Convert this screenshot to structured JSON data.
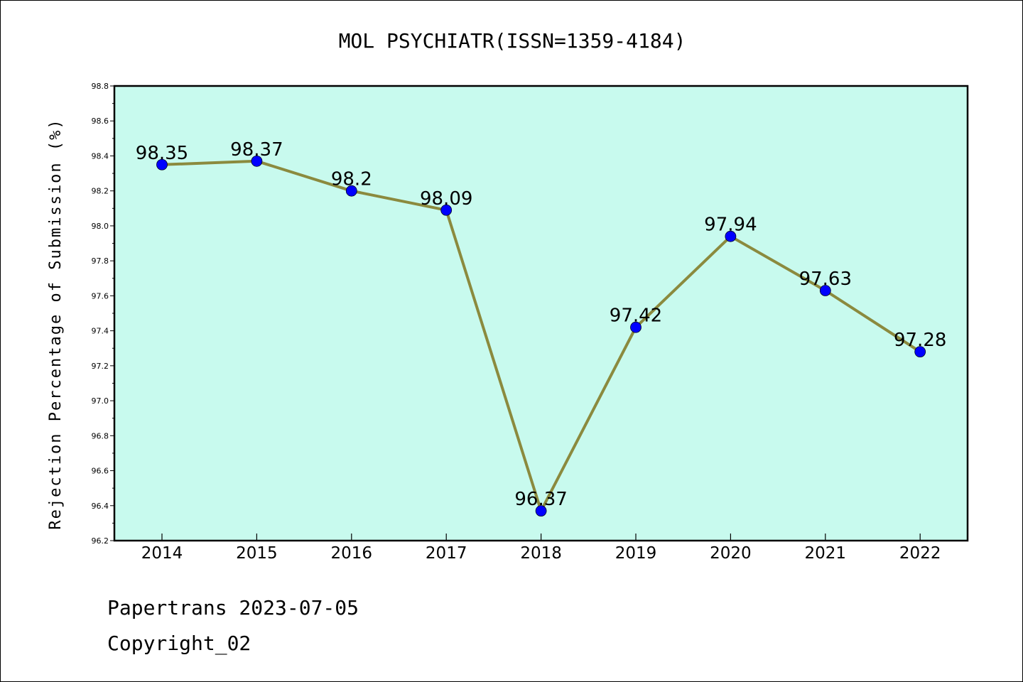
{
  "chart_data": {
    "type": "line",
    "title": "MOL PSYCHIATR(ISSN=1359-4184)",
    "xlabel": "",
    "ylabel": "Rejection Percentage of Submission (%)",
    "categories": [
      "2014",
      "2015",
      "2016",
      "2017",
      "2018",
      "2019",
      "2020",
      "2021",
      "2022"
    ],
    "series": [
      {
        "values": [
          98.35,
          98.37,
          98.2,
          98.09,
          96.37,
          97.42,
          97.94,
          97.63,
          97.28
        ],
        "labels": [
          "98.35",
          "98.37",
          "98.2",
          "98.09",
          "96.37",
          "97.42",
          "97.94",
          "97.63",
          "97.28"
        ]
      }
    ],
    "ylim": [
      96.2,
      98.8
    ],
    "yticks": [
      "96.2",
      "96.4",
      "96.6",
      "96.8",
      "97.0",
      "97.2",
      "97.4",
      "97.6",
      "97.8",
      "98.0",
      "98.2",
      "98.4",
      "98.6",
      "98.8"
    ],
    "grid": false,
    "colors": {
      "plot_background": "#c8faee",
      "line": "#8b8a3e",
      "marker": "#0000ff"
    }
  },
  "footer": {
    "line1": "Papertrans 2023-07-05",
    "line2": "Copyright_02"
  }
}
